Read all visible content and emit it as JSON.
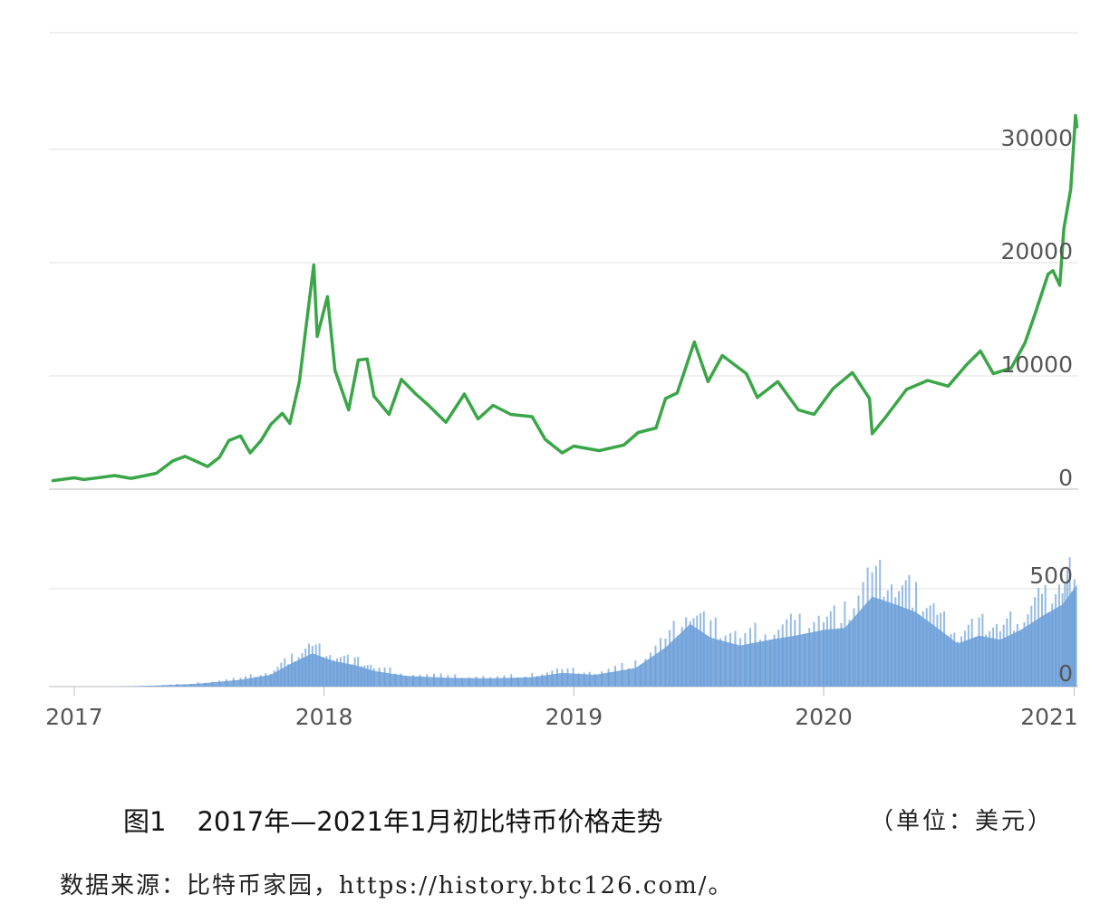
{
  "caption": {
    "figure_num": "图1",
    "title": "2017年—2021年1月初比特币价格走势",
    "unit": "（单位：美元）"
  },
  "source": "数据来源：比特币家园，https://history.btc126.com/。",
  "colors": {
    "price_line": "#3aa648",
    "volume_fill": "#6a9ed8",
    "grid": "#e2e2e2",
    "axis": "#bbbbbb",
    "tick_text": "#555555"
  },
  "chart_data": [
    {
      "type": "line",
      "title": "",
      "ylabel": "",
      "ylim": [
        0,
        33000
      ],
      "y_ticks": [
        "0",
        "10000",
        "20000",
        "30000"
      ],
      "x_ticks": [
        "2017",
        "2018",
        "2019",
        "2020",
        "2021"
      ],
      "grid": "horizontal",
      "series": [
        {
          "values_by_date": [
            [
              "2016-12-01",
              750
            ],
            [
              "2017-01-01",
              1000
            ],
            [
              "2017-01-15",
              850
            ],
            [
              "2017-02-01",
              980
            ],
            [
              "2017-03-01",
              1200
            ],
            [
              "2017-03-25",
              950
            ],
            [
              "2017-04-15",
              1200
            ],
            [
              "2017-05-01",
              1400
            ],
            [
              "2017-05-25",
              2500
            ],
            [
              "2017-06-12",
              2900
            ],
            [
              "2017-07-15",
              2000
            ],
            [
              "2017-08-01",
              2800
            ],
            [
              "2017-08-15",
              4300
            ],
            [
              "2017-09-01",
              4700
            ],
            [
              "2017-09-15",
              3200
            ],
            [
              "2017-10-01",
              4300
            ],
            [
              "2017-10-15",
              5700
            ],
            [
              "2017-11-01",
              6700
            ],
            [
              "2017-11-12",
              5800
            ],
            [
              "2017-11-26",
              9500
            ],
            [
              "2017-12-07",
              15000
            ],
            [
              "2017-12-17",
              19800
            ],
            [
              "2017-12-22",
              13500
            ],
            [
              "2018-01-06",
              17000
            ],
            [
              "2018-01-17",
              10500
            ],
            [
              "2018-02-06",
              7000
            ],
            [
              "2018-02-20",
              11400
            ],
            [
              "2018-03-05",
              11500
            ],
            [
              "2018-03-15",
              8200
            ],
            [
              "2018-04-06",
              6600
            ],
            [
              "2018-04-24",
              9700
            ],
            [
              "2018-05-15",
              8400
            ],
            [
              "2018-06-01",
              7500
            ],
            [
              "2018-06-28",
              5900
            ],
            [
              "2018-07-25",
              8400
            ],
            [
              "2018-08-14",
              6200
            ],
            [
              "2018-09-05",
              7400
            ],
            [
              "2018-10-01",
              6600
            ],
            [
              "2018-11-01",
              6400
            ],
            [
              "2018-11-20",
              4400
            ],
            [
              "2018-12-15",
              3200
            ],
            [
              "2019-01-01",
              3800
            ],
            [
              "2019-02-07",
              3400
            ],
            [
              "2019-03-15",
              3900
            ],
            [
              "2019-04-05",
              5000
            ],
            [
              "2019-05-01",
              5400
            ],
            [
              "2019-05-15",
              8000
            ],
            [
              "2019-06-01",
              8500
            ],
            [
              "2019-06-26",
              13000
            ],
            [
              "2019-07-16",
              9500
            ],
            [
              "2019-08-06",
              11800
            ],
            [
              "2019-09-10",
              10200
            ],
            [
              "2019-09-26",
              8100
            ],
            [
              "2019-10-26",
              9500
            ],
            [
              "2019-11-25",
              7000
            ],
            [
              "2019-12-18",
              6600
            ],
            [
              "2020-01-15",
              8900
            ],
            [
              "2020-02-12",
              10300
            ],
            [
              "2020-03-08",
              8000
            ],
            [
              "2020-03-12",
              4900
            ],
            [
              "2020-04-01",
              6400
            ],
            [
              "2020-05-01",
              8800
            ],
            [
              "2020-06-01",
              9600
            ],
            [
              "2020-07-01",
              9100
            ],
            [
              "2020-07-28",
              11000
            ],
            [
              "2020-08-17",
              12200
            ],
            [
              "2020-09-05",
              10200
            ],
            [
              "2020-10-01",
              10700
            ],
            [
              "2020-10-21",
              12900
            ],
            [
              "2020-11-05",
              15500
            ],
            [
              "2020-11-24",
              19000
            ],
            [
              "2020-12-01",
              19300
            ],
            [
              "2020-12-11",
              18000
            ],
            [
              "2020-12-17",
              23000
            ],
            [
              "2020-12-27",
              26500
            ],
            [
              "2021-01-03",
              33000
            ],
            [
              "2021-01-05",
              32000
            ]
          ]
        }
      ]
    },
    {
      "type": "area",
      "title": "",
      "ylabel": "",
      "ylim": [
        0,
        680
      ],
      "y_ticks": [
        "0",
        "500"
      ],
      "x_ticks": [
        "2017",
        "2018",
        "2019",
        "2020",
        "2021"
      ],
      "grid": "horizontal",
      "series": [
        {
          "values_by_date": [
            [
              "2017-01-01",
              0
            ],
            [
              "2017-03-01",
              0
            ],
            [
              "2017-05-01",
              5
            ],
            [
              "2017-07-01",
              15
            ],
            [
              "2017-09-01",
              35
            ],
            [
              "2017-10-15",
              60
            ],
            [
              "2017-11-15",
              120
            ],
            [
              "2017-12-15",
              170
            ],
            [
              "2018-01-15",
              130
            ],
            [
              "2018-02-15",
              110
            ],
            [
              "2018-03-15",
              80
            ],
            [
              "2018-05-01",
              55
            ],
            [
              "2018-07-01",
              45
            ],
            [
              "2018-09-01",
              42
            ],
            [
              "2018-11-01",
              48
            ],
            [
              "2018-12-15",
              70
            ],
            [
              "2019-02-01",
              60
            ],
            [
              "2019-04-01",
              95
            ],
            [
              "2019-05-15",
              200
            ],
            [
              "2019-06-20",
              320
            ],
            [
              "2019-07-20",
              250
            ],
            [
              "2019-09-01",
              210
            ],
            [
              "2019-10-15",
              240
            ],
            [
              "2019-11-20",
              260
            ],
            [
              "2020-01-01",
              290
            ],
            [
              "2020-02-01",
              300
            ],
            [
              "2020-03-12",
              460
            ],
            [
              "2020-04-15",
              420
            ],
            [
              "2020-05-15",
              380
            ],
            [
              "2020-06-15",
              300
            ],
            [
              "2020-07-15",
              220
            ],
            [
              "2020-08-15",
              260
            ],
            [
              "2020-09-15",
              240
            ],
            [
              "2020-10-15",
              290
            ],
            [
              "2020-11-15",
              360
            ],
            [
              "2020-12-15",
              420
            ],
            [
              "2021-01-05",
              520
            ]
          ]
        }
      ]
    }
  ]
}
